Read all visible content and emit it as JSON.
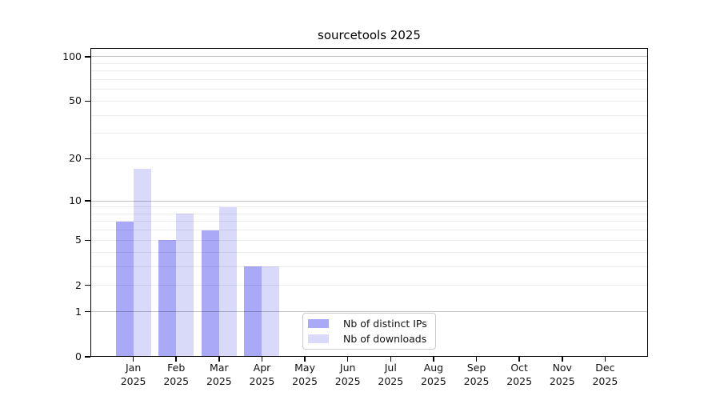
{
  "title": "sourcetools 2025",
  "chart_data": {
    "type": "bar",
    "title": "sourcetools 2025",
    "y_scale": "log1p",
    "ylim": [
      0,
      115
    ],
    "y_ticks": [
      0,
      1,
      2,
      5,
      10,
      20,
      50,
      100
    ],
    "grid": true,
    "categories": [
      "Jan",
      "Feb",
      "Mar",
      "Apr",
      "May",
      "Jun",
      "Jul",
      "Aug",
      "Sep",
      "Oct",
      "Nov",
      "Dec"
    ],
    "year": "2025",
    "series": [
      {
        "name": "Nb of distinct IPs",
        "color": "#a9a9f8",
        "values": [
          7,
          5,
          6,
          3,
          0,
          0,
          0,
          0,
          0,
          0,
          0,
          0
        ]
      },
      {
        "name": "Nb of downloads",
        "color": "#d9d9f9",
        "values": [
          17,
          8,
          9,
          3,
          0,
          0,
          0,
          0,
          0,
          0,
          0,
          0
        ]
      }
    ],
    "legend": {
      "labels": [
        "Nb of distinct IPs",
        "Nb of downloads"
      ],
      "position": "lower-center"
    }
  }
}
